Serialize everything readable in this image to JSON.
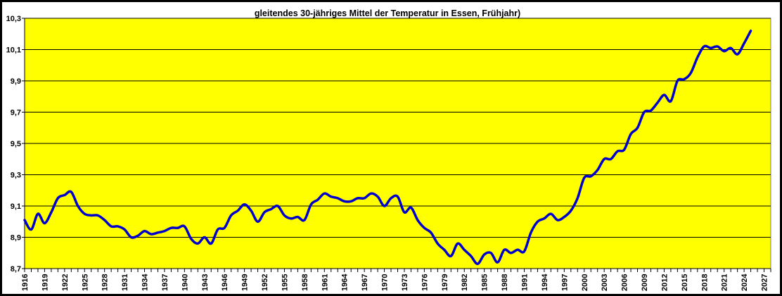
{
  "chart_data": {
    "type": "line",
    "title": "gleitendes 30-jähriges Mittel der Temperatur in Essen,  Frühjahr)",
    "xlabel": "",
    "ylabel": "",
    "xlim": [
      1916,
      2028
    ],
    "ylim": [
      8.7,
      10.3
    ],
    "y_ticks": [
      "8,7",
      "8,9",
      "9,1",
      "9,3",
      "9,5",
      "9,7",
      "9,9",
      "10,1",
      "10,3"
    ],
    "x_tick_step": 3,
    "x_tick_start": 1916,
    "x_tick_end": 2027,
    "grid": true,
    "colors": {
      "background": "#ffff00",
      "line": "#0000cc",
      "grid": "#000000"
    },
    "series": [
      {
        "name": "30-jähriges Mittel",
        "x": [
          1916,
          1917,
          1918,
          1919,
          1920,
          1921,
          1922,
          1923,
          1924,
          1925,
          1926,
          1927,
          1928,
          1929,
          1930,
          1931,
          1932,
          1933,
          1934,
          1935,
          1936,
          1937,
          1938,
          1939,
          1940,
          1941,
          1942,
          1943,
          1944,
          1945,
          1946,
          1947,
          1948,
          1949,
          1950,
          1951,
          1952,
          1953,
          1954,
          1955,
          1956,
          1957,
          1958,
          1959,
          1960,
          1961,
          1962,
          1963,
          1964,
          1965,
          1966,
          1967,
          1968,
          1969,
          1970,
          1971,
          1972,
          1973,
          1974,
          1975,
          1976,
          1977,
          1978,
          1979,
          1980,
          1981,
          1982,
          1983,
          1984,
          1985,
          1986,
          1987,
          1988,
          1989,
          1990,
          1991,
          1992,
          1993,
          1994,
          1995,
          1996,
          1997,
          1998,
          1999,
          2000,
          2001,
          2002,
          2003,
          2004,
          2005,
          2006,
          2007,
          2008,
          2009,
          2010,
          2011,
          2012,
          2013,
          2014,
          2015,
          2016,
          2017,
          2018,
          2019,
          2020,
          2021,
          2022,
          2023,
          2024,
          2025
        ],
        "values": [
          9.01,
          8.95,
          9.05,
          8.99,
          9.06,
          9.15,
          9.17,
          9.19,
          9.1,
          9.05,
          9.04,
          9.04,
          9.01,
          8.97,
          8.97,
          8.95,
          8.9,
          8.91,
          8.94,
          8.92,
          8.93,
          8.94,
          8.96,
          8.96,
          8.97,
          8.89,
          8.86,
          8.9,
          8.86,
          8.95,
          8.96,
          9.04,
          9.07,
          9.11,
          9.07,
          9.0,
          9.06,
          9.08,
          9.1,
          9.04,
          9.02,
          9.03,
          9.01,
          9.11,
          9.14,
          9.18,
          9.16,
          9.15,
          9.13,
          9.13,
          9.15,
          9.15,
          9.18,
          9.16,
          9.1,
          9.15,
          9.16,
          9.06,
          9.09,
          9.01,
          8.96,
          8.93,
          8.86,
          8.82,
          8.78,
          8.86,
          8.82,
          8.78,
          8.73,
          8.79,
          8.8,
          8.74,
          8.82,
          8.8,
          8.82,
          8.81,
          8.93,
          9.0,
          9.02,
          9.05,
          9.01,
          9.03,
          9.07,
          9.15,
          9.28,
          9.29,
          9.33,
          9.4,
          9.4,
          9.45,
          9.46,
          9.56,
          9.6,
          9.7,
          9.71,
          9.76,
          9.81,
          9.77,
          9.9,
          9.91,
          9.95,
          10.05,
          10.12,
          10.11,
          10.12,
          10.09,
          10.11,
          10.07,
          10.14,
          10.22
        ]
      }
    ]
  }
}
